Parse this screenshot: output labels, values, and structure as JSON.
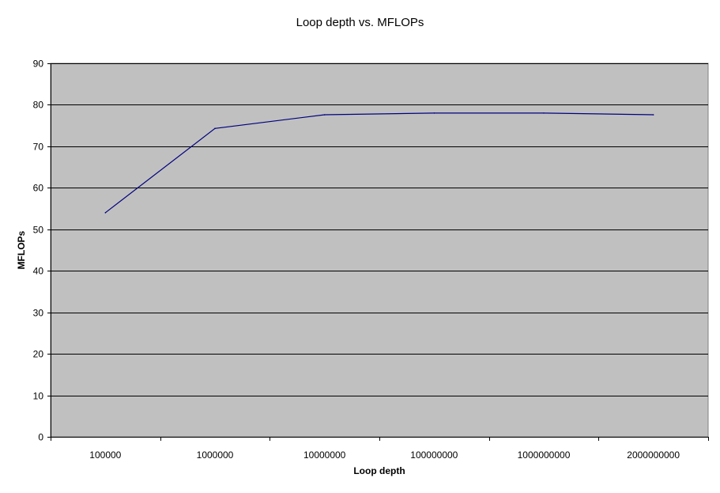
{
  "chart_data": {
    "type": "line",
    "title": "Loop depth vs. MFLOPs",
    "xlabel": "Loop depth",
    "ylabel": "MFLOPs",
    "categories": [
      "100000",
      "1000000",
      "10000000",
      "100000000",
      "1000000000",
      "2000000000"
    ],
    "series": [
      {
        "values": [
          54.0,
          74.3,
          77.6,
          78.0,
          78.0,
          77.6
        ]
      }
    ],
    "ylim": [
      0,
      90
    ],
    "yticks": [
      0,
      10,
      20,
      30,
      40,
      50,
      60,
      70,
      80,
      90
    ],
    "grid": true,
    "legend": "none",
    "colors": {
      "plot_background": "#c0c0c0",
      "line": "#000080",
      "gridline": "#000000"
    }
  }
}
